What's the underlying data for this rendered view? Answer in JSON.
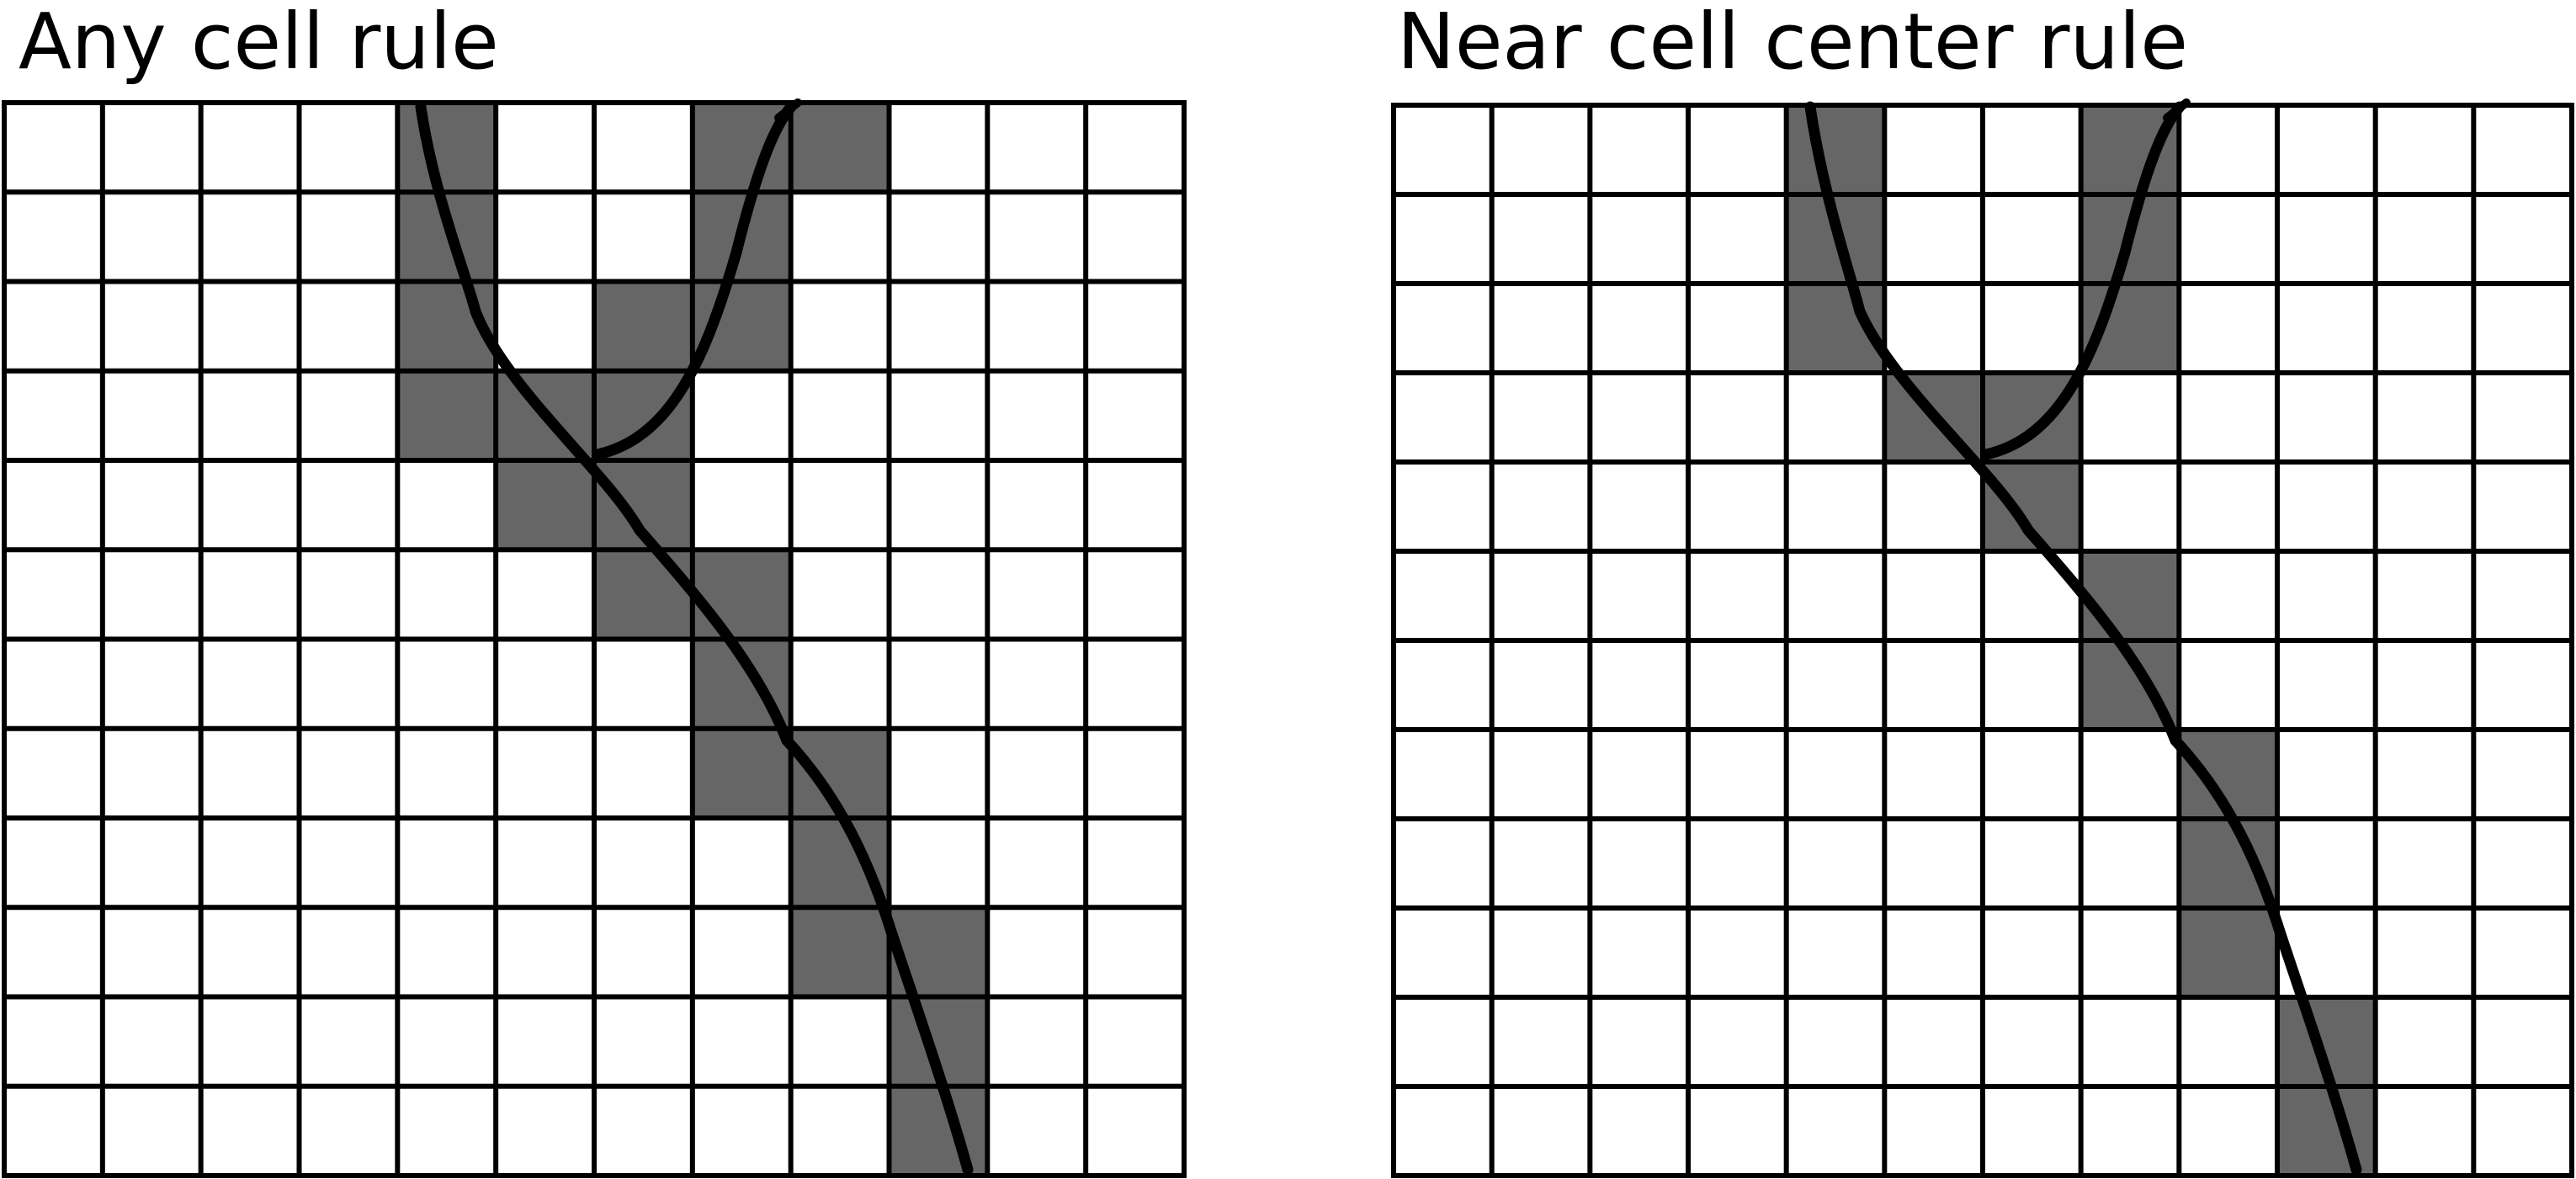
{
  "panels": [
    {
      "title": "Any cell rule",
      "grid": {
        "rows": 12,
        "cols": 12
      },
      "shaded_cells": [
        [
          0,
          4
        ],
        [
          0,
          7
        ],
        [
          0,
          8
        ],
        [
          1,
          4
        ],
        [
          1,
          7
        ],
        [
          2,
          4
        ],
        [
          2,
          6
        ],
        [
          2,
          7
        ],
        [
          3,
          4
        ],
        [
          3,
          5
        ],
        [
          3,
          6
        ],
        [
          4,
          5
        ],
        [
          4,
          6
        ],
        [
          5,
          6
        ],
        [
          5,
          7
        ],
        [
          6,
          7
        ],
        [
          7,
          7
        ],
        [
          7,
          8
        ],
        [
          8,
          8
        ],
        [
          9,
          8
        ],
        [
          9,
          9
        ],
        [
          10,
          9
        ],
        [
          11,
          9
        ]
      ]
    },
    {
      "title": "Near cell center rule",
      "grid": {
        "rows": 12,
        "cols": 12
      },
      "shaded_cells": [
        [
          0,
          4
        ],
        [
          0,
          7
        ],
        [
          1,
          4
        ],
        [
          1,
          7
        ],
        [
          2,
          4
        ],
        [
          2,
          7
        ],
        [
          3,
          5
        ],
        [
          3,
          6
        ],
        [
          4,
          6
        ],
        [
          5,
          7
        ],
        [
          6,
          7
        ],
        [
          7,
          8
        ],
        [
          8,
          8
        ],
        [
          9,
          8
        ],
        [
          10,
          9
        ],
        [
          11,
          9
        ]
      ]
    }
  ],
  "colors": {
    "cell_fill": "#ffffff",
    "shaded_fill": "#666666",
    "grid_line": "#000000",
    "curve": "#000000"
  }
}
